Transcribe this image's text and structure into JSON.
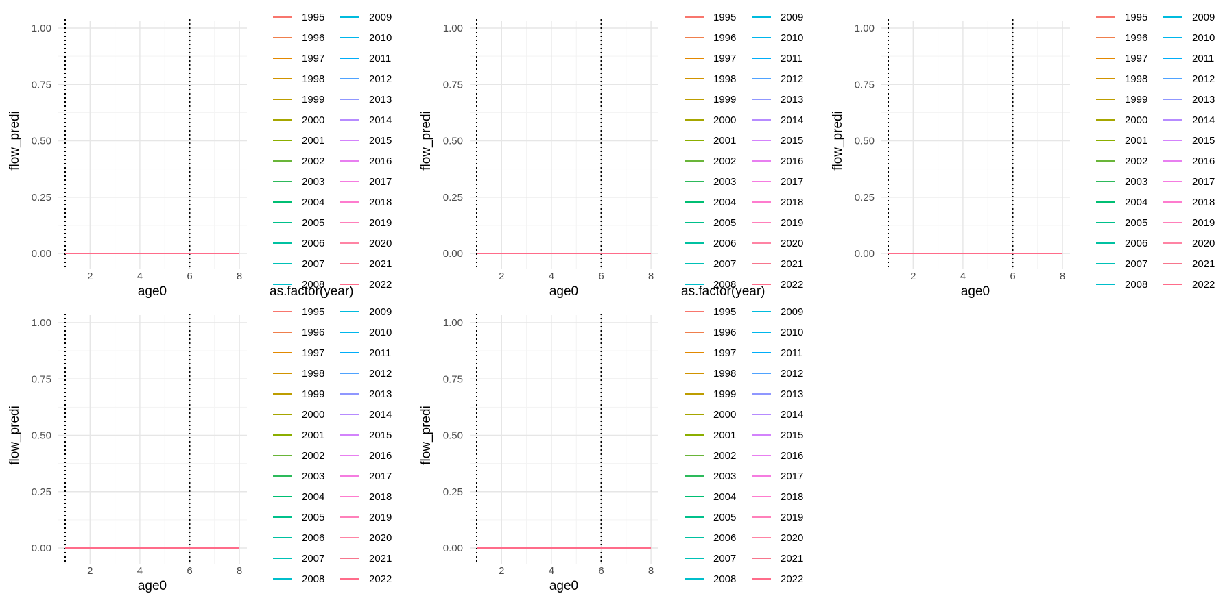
{
  "legend_labels": [
    "1995",
    "1996",
    "1997",
    "1998",
    "1999",
    "2000",
    "2001",
    "2002",
    "2003",
    "2004",
    "2005",
    "2006",
    "2007",
    "2008",
    "2009",
    "2010",
    "2011",
    "2012",
    "2013",
    "2014",
    "2015",
    "2016",
    "2017",
    "2018",
    "2019",
    "2020",
    "2021",
    "2022"
  ],
  "legend_colors": [
    "#F8766D",
    "#F07F4C",
    "#E38900",
    "#D19300",
    "#BD9D00",
    "#A6A600",
    "#8BAE00",
    "#69B539",
    "#2DBA5B",
    "#00BE73",
    "#00C08B",
    "#00C1A1",
    "#00C1B7",
    "#00BECB",
    "#00BBDD",
    "#00B6EC",
    "#00ADF9",
    "#4FA3FF",
    "#8F97FF",
    "#B68BFF",
    "#D383FC",
    "#E87FF0",
    "#F57CE0",
    "#FE7CCE",
    "#FF80BA",
    "#FF84A4",
    "#F7768D",
    "#FF6C8A"
  ],
  "chart_data": [
    {
      "type": "line",
      "xlabel": "age0",
      "ylabel": "flow_predi",
      "legend_title": "as.factor(year)",
      "xlim": [
        1,
        8.3
      ],
      "ylim": [
        0,
        1.0
      ],
      "x_ticks": [
        "2",
        "4",
        "6",
        "8"
      ],
      "y_ticks": [
        "0.00",
        "0.25",
        "0.50",
        "0.75",
        "1.00"
      ],
      "vlines": [
        1,
        6
      ],
      "grid": true,
      "legend_position": "right",
      "series": [
        {
          "x": [
            1,
            8
          ],
          "y": [
            0,
            0
          ]
        }
      ]
    },
    {
      "type": "line",
      "xlabel": "age0",
      "ylabel": "flow_predi",
      "legend_title": "as.factor(year)",
      "xlim": [
        1,
        8.3
      ],
      "ylim": [
        0,
        1.0
      ],
      "x_ticks": [
        "2",
        "4",
        "6",
        "8"
      ],
      "y_ticks": [
        "0.00",
        "0.25",
        "0.50",
        "0.75",
        "1.00"
      ],
      "vlines": [
        1,
        6
      ],
      "grid": true,
      "legend_position": "right",
      "series": [
        {
          "x": [
            1,
            8
          ],
          "y": [
            0,
            0
          ]
        }
      ]
    },
    {
      "type": "line",
      "xlabel": "age0",
      "ylabel": "flow_predi",
      "legend_title": "",
      "xlim": [
        1,
        8.3
      ],
      "ylim": [
        0,
        1.0
      ],
      "x_ticks": [
        "2",
        "4",
        "6",
        "8"
      ],
      "y_ticks": [
        "0.00",
        "0.25",
        "0.50",
        "0.75",
        "1.00"
      ],
      "vlines": [
        1,
        6
      ],
      "grid": true,
      "legend_position": "right",
      "series": [
        {
          "x": [
            1,
            8
          ],
          "y": [
            0,
            0
          ]
        }
      ]
    },
    {
      "type": "line",
      "xlabel": "age0",
      "ylabel": "flow_predi",
      "legend_title": "",
      "xlim": [
        1,
        8.3
      ],
      "ylim": [
        0,
        1.0
      ],
      "x_ticks": [
        "2",
        "4",
        "6",
        "8"
      ],
      "y_ticks": [
        "0.00",
        "0.25",
        "0.50",
        "0.75",
        "1.00"
      ],
      "vlines": [
        1,
        6
      ],
      "grid": true,
      "legend_position": "right",
      "series": [
        {
          "x": [
            1,
            8
          ],
          "y": [
            0,
            0
          ]
        }
      ]
    },
    {
      "type": "line",
      "xlabel": "age0",
      "ylabel": "flow_predi",
      "legend_title": "",
      "xlim": [
        1,
        8.3
      ],
      "ylim": [
        0,
        1.0
      ],
      "x_ticks": [
        "2",
        "4",
        "6",
        "8"
      ],
      "y_ticks": [
        "0.00",
        "0.25",
        "0.50",
        "0.75",
        "1.00"
      ],
      "vlines": [
        1,
        6
      ],
      "grid": true,
      "legend_position": "right",
      "series": [
        {
          "x": [
            1,
            8
          ],
          "y": [
            0,
            0
          ]
        }
      ]
    }
  ]
}
